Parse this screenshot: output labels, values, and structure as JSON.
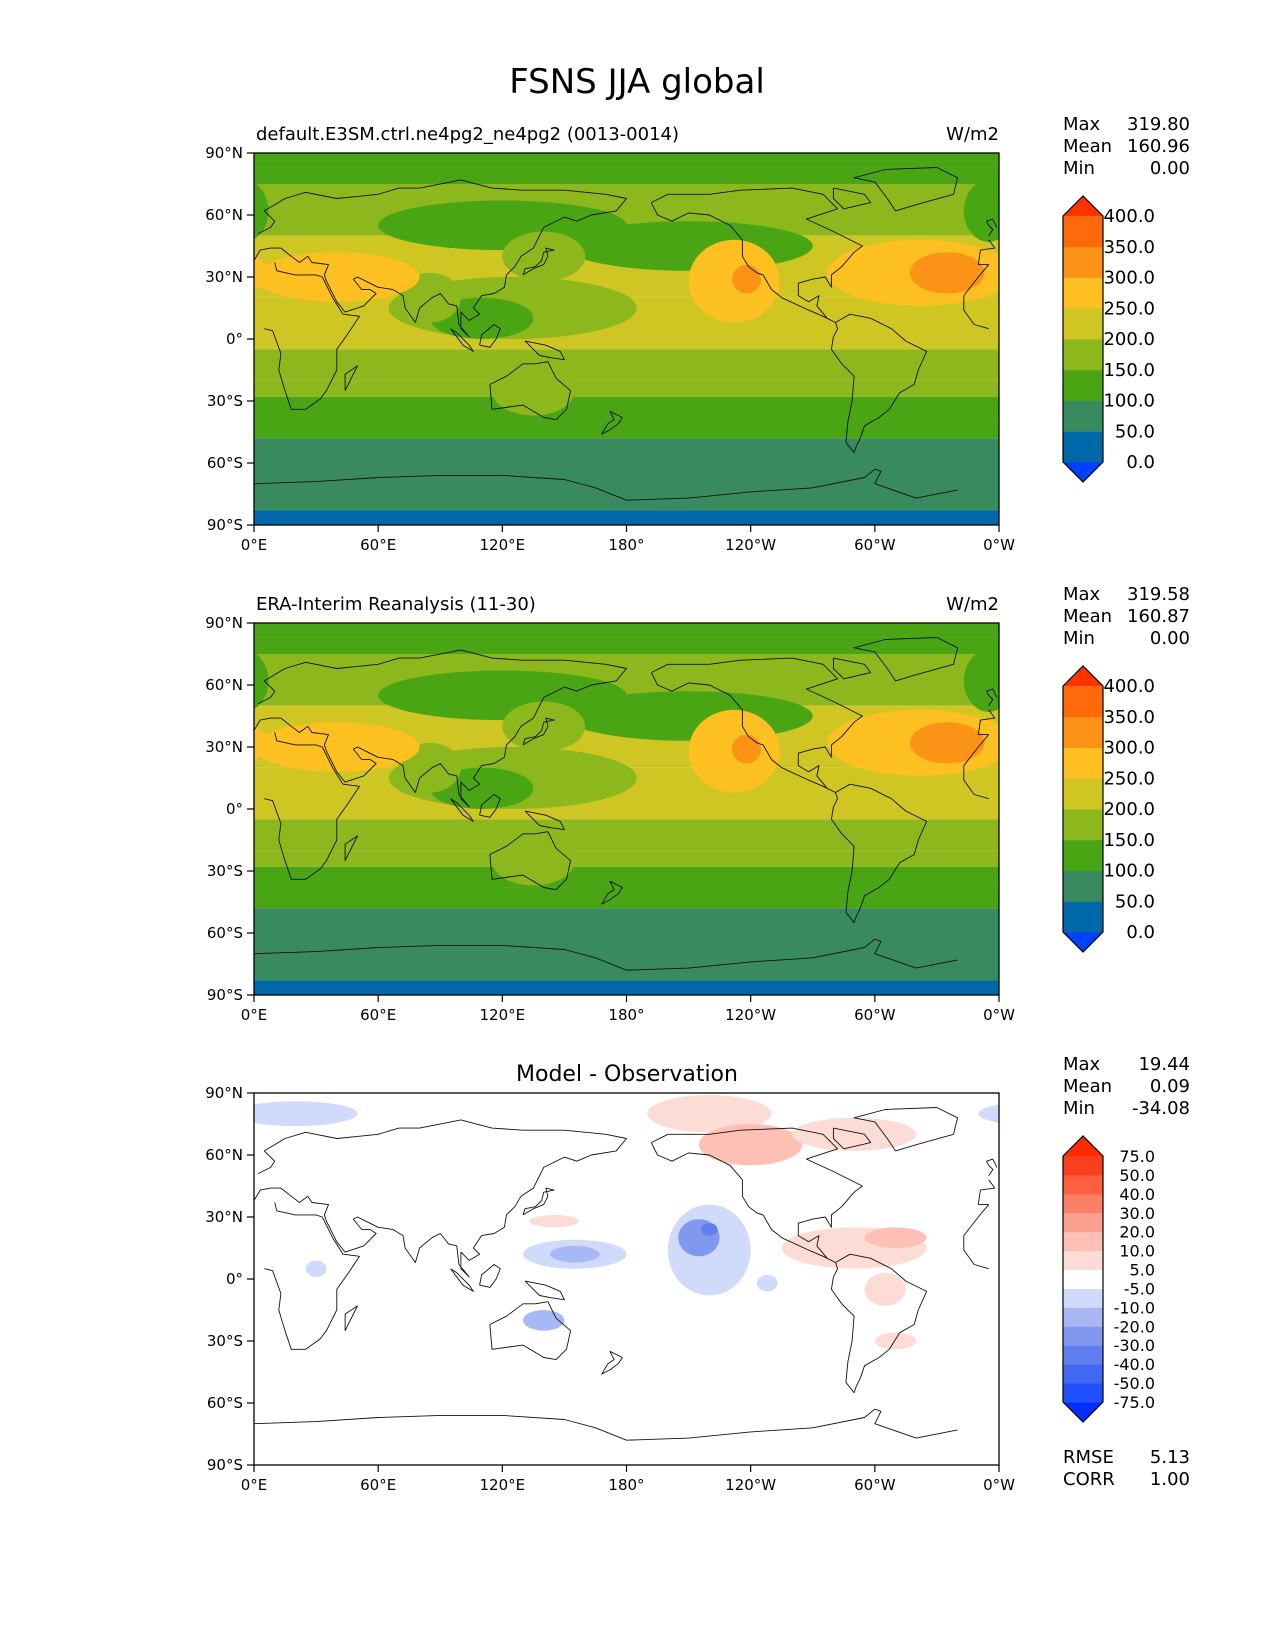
{
  "figure": {
    "title": "FSNS JJA global"
  },
  "chart_data": [
    {
      "type": "heatmap",
      "name": "test",
      "left_title": "default.E3SM.ctrl.ne4pg2_ne4pg2 (0013-0014)",
      "center_title": "",
      "units": "W/m2",
      "stats": [
        {
          "label": "Max",
          "value": "319.80"
        },
        {
          "label": "Mean",
          "value": "160.96"
        },
        {
          "label": "Min",
          "value": "0.00"
        }
      ],
      "colorbar": {
        "levels": [
          0,
          50,
          100,
          150,
          200,
          250,
          300,
          350,
          400
        ],
        "tick_labels": [
          "0.0",
          "50.0",
          "100.0",
          "150.0",
          "200.0",
          "250.0",
          "300.0",
          "350.0",
          "400.0"
        ],
        "colors": [
          "#0040ff",
          "#0068a8",
          "#3a8a60",
          "#4aa515",
          "#8cb81e",
          "#cfc623",
          "#fcc020",
          "#fb9416",
          "#fc6a0c",
          "#ff3300"
        ],
        "extend": "both"
      },
      "lat_bands": [
        {
          "lat": [
            83,
            90
          ],
          "value": 108
        },
        {
          "lat": [
            75,
            83
          ],
          "value": 125
        },
        {
          "lat": [
            50,
            75
          ],
          "value": 175
        },
        {
          "lat": [
            20,
            50
          ],
          "value": 225
        },
        {
          "lat": [
            -5,
            20
          ],
          "value": 215
        },
        {
          "lat": [
            -20,
            -5
          ],
          "value": 180
        },
        {
          "lat": [
            -28,
            -20
          ],
          "value": 155
        },
        {
          "lat": [
            -38,
            -28
          ],
          "value": 128
        },
        {
          "lat": [
            -48,
            -38
          ],
          "value": 110
        },
        {
          "lat": [
            -83,
            -48
          ],
          "value": 65
        },
        {
          "lat": [
            -90,
            -83
          ],
          "value": 25
        }
      ],
      "blobs": [
        {
          "lon": -150,
          "lat": 45,
          "rlon": 60,
          "rlat": 12,
          "value": 125
        },
        {
          "lon": 120,
          "lat": 55,
          "rlon": 60,
          "rlat": 12,
          "value": 125
        },
        {
          "lon": 140,
          "lat": 40,
          "rlon": 20,
          "rlat": 12,
          "value": 175
        },
        {
          "lon": 125,
          "lat": 15,
          "rlon": 60,
          "rlat": 15,
          "value": 170
        },
        {
          "lon": 110,
          "lat": 10,
          "rlon": 25,
          "rlat": 10,
          "value": 125
        },
        {
          "lon": 85,
          "lat": 20,
          "rlon": 15,
          "rlat": 12,
          "value": 175
        },
        {
          "lon": 40,
          "lat": 30,
          "rlon": 40,
          "rlat": 12,
          "value": 255
        },
        {
          "lon": -128,
          "lat": 28,
          "rlon": 22,
          "rlat": 20,
          "value": 260
        },
        {
          "lon": -122,
          "lat": 29,
          "rlon": 7,
          "rlat": 7,
          "value": 305
        },
        {
          "lon": -38,
          "lat": 32,
          "rlon": 45,
          "rlat": 16,
          "value": 260
        },
        {
          "lon": -25,
          "lat": 32,
          "rlon": 18,
          "rlat": 10,
          "value": 305
        },
        {
          "lon": -5,
          "lat": 62,
          "rlon": 12,
          "rlat": 15,
          "value": 125
        },
        {
          "lon": 135,
          "lat": -25,
          "rlon": 20,
          "rlat": 12,
          "value": 175
        }
      ],
      "x_ticks": [
        "0°E",
        "60°E",
        "120°E",
        "180°",
        "120°W",
        "60°W",
        "0°W"
      ],
      "y_ticks": [
        "90°N",
        "60°N",
        "30°N",
        "0°",
        "30°S",
        "60°S",
        "90°S"
      ],
      "xlim": [
        0,
        360
      ],
      "ylim": [
        -90,
        90
      ]
    },
    {
      "type": "heatmap",
      "name": "reference",
      "left_title": "ERA-Interim Reanalysis (11-30)",
      "center_title": "",
      "units": "W/m2",
      "stats": [
        {
          "label": "Max",
          "value": "319.58"
        },
        {
          "label": "Mean",
          "value": "160.87"
        },
        {
          "label": "Min",
          "value": "0.00"
        }
      ],
      "colorbar": {
        "levels": [
          0,
          50,
          100,
          150,
          200,
          250,
          300,
          350,
          400
        ],
        "tick_labels": [
          "0.0",
          "50.0",
          "100.0",
          "150.0",
          "200.0",
          "250.0",
          "300.0",
          "350.0",
          "400.0"
        ],
        "colors": [
          "#0040ff",
          "#0068a8",
          "#3a8a60",
          "#4aa515",
          "#8cb81e",
          "#cfc623",
          "#fcc020",
          "#fb9416",
          "#fc6a0c",
          "#ff3300"
        ],
        "extend": "both"
      },
      "lat_bands": [
        {
          "lat": [
            83,
            90
          ],
          "value": 108
        },
        {
          "lat": [
            75,
            83
          ],
          "value": 125
        },
        {
          "lat": [
            50,
            75
          ],
          "value": 175
        },
        {
          "lat": [
            20,
            50
          ],
          "value": 225
        },
        {
          "lat": [
            -5,
            20
          ],
          "value": 215
        },
        {
          "lat": [
            -20,
            -5
          ],
          "value": 180
        },
        {
          "lat": [
            -28,
            -20
          ],
          "value": 155
        },
        {
          "lat": [
            -38,
            -28
          ],
          "value": 128
        },
        {
          "lat": [
            -48,
            -38
          ],
          "value": 110
        },
        {
          "lat": [
            -83,
            -48
          ],
          "value": 65
        },
        {
          "lat": [
            -90,
            -83
          ],
          "value": 25
        }
      ],
      "blobs": [
        {
          "lon": -150,
          "lat": 45,
          "rlon": 60,
          "rlat": 12,
          "value": 125
        },
        {
          "lon": 120,
          "lat": 55,
          "rlon": 60,
          "rlat": 12,
          "value": 125
        },
        {
          "lon": 140,
          "lat": 40,
          "rlon": 20,
          "rlat": 12,
          "value": 175
        },
        {
          "lon": 125,
          "lat": 15,
          "rlon": 60,
          "rlat": 15,
          "value": 170
        },
        {
          "lon": 110,
          "lat": 10,
          "rlon": 25,
          "rlat": 10,
          "value": 125
        },
        {
          "lon": 85,
          "lat": 20,
          "rlon": 15,
          "rlat": 12,
          "value": 175
        },
        {
          "lon": 40,
          "lat": 30,
          "rlon": 40,
          "rlat": 12,
          "value": 255
        },
        {
          "lon": -128,
          "lat": 28,
          "rlon": 22,
          "rlat": 20,
          "value": 260
        },
        {
          "lon": -122,
          "lat": 29,
          "rlon": 7,
          "rlat": 7,
          "value": 305
        },
        {
          "lon": -38,
          "lat": 32,
          "rlon": 45,
          "rlat": 16,
          "value": 260
        },
        {
          "lon": -25,
          "lat": 32,
          "rlon": 18,
          "rlat": 10,
          "value": 305
        },
        {
          "lon": -5,
          "lat": 62,
          "rlon": 12,
          "rlat": 15,
          "value": 125
        },
        {
          "lon": 135,
          "lat": -25,
          "rlon": 20,
          "rlat": 12,
          "value": 175
        }
      ],
      "x_ticks": [
        "0°E",
        "60°E",
        "120°E",
        "180°",
        "120°W",
        "60°W",
        "0°W"
      ],
      "y_ticks": [
        "90°N",
        "60°N",
        "30°N",
        "0°",
        "30°S",
        "60°S",
        "90°S"
      ],
      "xlim": [
        0,
        360
      ],
      "ylim": [
        -90,
        90
      ]
    },
    {
      "type": "heatmap",
      "name": "difference",
      "left_title": "",
      "center_title": "Model - Observation",
      "units": "",
      "stats": [
        {
          "label": "Max",
          "value": "19.44"
        },
        {
          "label": "Mean",
          "value": "0.09"
        },
        {
          "label": "Min",
          "value": "-34.08"
        }
      ],
      "metrics": [
        {
          "label": "RMSE",
          "value": "5.13"
        },
        {
          "label": "CORR",
          "value": "1.00"
        }
      ],
      "colorbar": {
        "levels": [
          -75,
          -50,
          -40,
          -30,
          -20,
          -10,
          -5,
          5,
          10,
          20,
          30,
          40,
          50,
          75
        ],
        "tick_labels": [
          "-75.0",
          "-50.0",
          "-40.0",
          "-30.0",
          "-20.0",
          "-10.0",
          "-5.0",
          "5.0",
          "10.0",
          "20.0",
          "30.0",
          "40.0",
          "50.0",
          "75.0"
        ],
        "colors": [
          "#0030ff",
          "#2050ff",
          "#4068f0",
          "#6080f0",
          "#8098f0",
          "#a8b8f4",
          "#d0dafa",
          "#ffffff",
          "#fddcd6",
          "#fcc0b4",
          "#fca090",
          "#fc8068",
          "#fc6040",
          "#f84020",
          "#ff2a00"
        ],
        "extend": "both"
      },
      "lat_bands": [],
      "blobs": [
        {
          "lon": 20,
          "lat": 80,
          "rlon": 30,
          "rlat": 6,
          "value": -7
        },
        {
          "lon": -140,
          "lat": 80,
          "rlon": 30,
          "rlat": 9,
          "value": 7
        },
        {
          "lon": -120,
          "lat": 65,
          "rlon": 25,
          "rlat": 10,
          "value": 12
        },
        {
          "lon": -70,
          "lat": 70,
          "rlon": 30,
          "rlat": 8,
          "value": 7
        },
        {
          "lon": -140,
          "lat": 14,
          "rlon": 20,
          "rlat": 22,
          "value": -8
        },
        {
          "lon": -145,
          "lat": 20,
          "rlon": 10,
          "rlat": 9,
          "value": -22
        },
        {
          "lon": -140,
          "lat": 24,
          "rlon": 4,
          "rlat": 3,
          "value": -32
        },
        {
          "lon": 155,
          "lat": 12,
          "rlon": 25,
          "rlat": 7,
          "value": -8
        },
        {
          "lon": 155,
          "lat": 12,
          "rlon": 12,
          "rlat": 4,
          "value": -15
        },
        {
          "lon": -70,
          "lat": 15,
          "rlon": 35,
          "rlat": 10,
          "value": 8
        },
        {
          "lon": -50,
          "lat": 20,
          "rlon": 15,
          "rlat": 5,
          "value": 15
        },
        {
          "lon": -55,
          "lat": -5,
          "rlon": 10,
          "rlat": 8,
          "value": 7
        },
        {
          "lon": 140,
          "lat": -20,
          "rlon": 10,
          "rlat": 5,
          "value": -12
        },
        {
          "lon": 145,
          "lat": 28,
          "rlon": 12,
          "rlat": 3,
          "value": 7
        },
        {
          "lon": 30,
          "lat": 5,
          "rlon": 5,
          "rlat": 4,
          "value": -7
        },
        {
          "lon": -112,
          "lat": -2,
          "rlon": 5,
          "rlat": 4,
          "value": -7
        },
        {
          "lon": -50,
          "lat": -30,
          "rlon": 10,
          "rlat": 4,
          "value": 7
        }
      ],
      "x_ticks": [
        "0°E",
        "60°E",
        "120°E",
        "180°",
        "120°W",
        "60°W",
        "0°W"
      ],
      "y_ticks": [
        "90°N",
        "60°N",
        "30°N",
        "0°",
        "30°S",
        "60°S",
        "90°S"
      ],
      "xlim": [
        0,
        360
      ],
      "ylim": [
        -90,
        90
      ]
    }
  ]
}
